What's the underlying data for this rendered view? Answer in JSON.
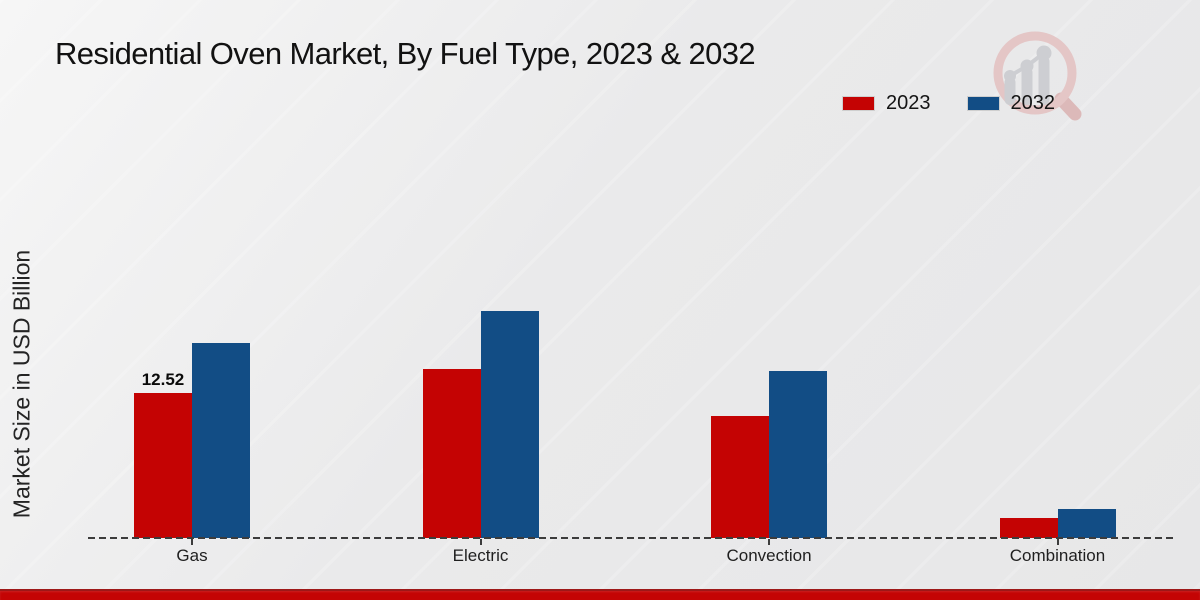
{
  "header": {
    "title": "Residential Oven Market, By Fuel Type, 2023 & 2032"
  },
  "icons": {
    "watermark": "magnifier-bar-chart-logo"
  },
  "legend": {
    "items": [
      {
        "label": "2023",
        "color": "#c40303"
      },
      {
        "label": "2032",
        "color": "#124d85"
      }
    ]
  },
  "chart_data": {
    "type": "bar",
    "title": "Residential Oven Market, By Fuel Type, 2023 & 2032",
    "xlabel": "",
    "ylabel": "Market Size in USD Billion",
    "categories": [
      "Gas",
      "Electric",
      "Convection",
      "Combination"
    ],
    "series": [
      {
        "name": "2023",
        "color": "#c40303",
        "values": [
          12.52,
          14.6,
          10.5,
          1.7
        ],
        "value_labels": [
          "12.52",
          "",
          "",
          ""
        ]
      },
      {
        "name": "2032",
        "color": "#124d85",
        "values": [
          16.8,
          19.6,
          14.4,
          2.5
        ],
        "value_labels": [
          "",
          "",
          "",
          ""
        ]
      }
    ],
    "ylim": [
      0,
      22
    ],
    "y_axis_visible": false,
    "grid": false,
    "baseline_style": "dashed",
    "legend_position": "top-right"
  },
  "footer": {
    "accent_color": "#c40404"
  }
}
